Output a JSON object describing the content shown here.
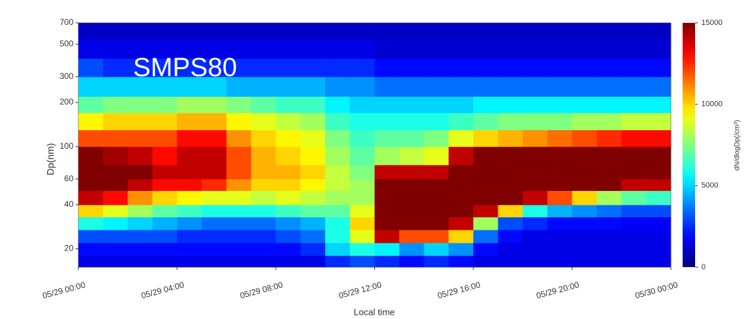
{
  "chart_data": {
    "type": "heatmap",
    "annotation": "SMPS80",
    "xlabel": "Local time",
    "ylabel": "Dp(nm)",
    "colorbar_label": "dN/dlogDp(/cm³)",
    "log_y": true,
    "colormap": "jet",
    "annotation_color": "#ffffff",
    "x_bins": [
      0,
      1,
      2,
      3,
      4,
      5,
      6,
      7,
      8,
      9,
      10,
      11,
      12,
      13,
      14,
      15,
      16,
      17,
      18,
      19,
      20,
      21,
      22,
      23,
      24
    ],
    "xlim": [
      0,
      24
    ],
    "xticks": [
      {
        "value": 0,
        "label": "05/29 00:00"
      },
      {
        "value": 4,
        "label": "05/29 04:00"
      },
      {
        "value": 8,
        "label": "05/29 08:00"
      },
      {
        "value": 12,
        "label": "05/29 12:00"
      },
      {
        "value": 16,
        "label": "05/29 16:00"
      },
      {
        "value": 20,
        "label": "05/29 20:00"
      },
      {
        "value": 24,
        "label": "05/30 00:00"
      }
    ],
    "y_bins": [
      15,
      18,
      22,
      27,
      33,
      40,
      50,
      60,
      75,
      100,
      130,
      170,
      220,
      300,
      400,
      550,
      700
    ],
    "ylim": [
      15,
      700
    ],
    "yticks": [
      20,
      40,
      60,
      100,
      200,
      300,
      500,
      700
    ],
    "clim": [
      0,
      15000
    ],
    "cticks": [
      0,
      5000,
      10000,
      15000
    ],
    "z": [
      [
        1500,
        1500,
        1500,
        1500,
        1500,
        1500,
        1500,
        1500,
        1500,
        1500,
        2500,
        3000,
        2500,
        2000,
        2500,
        2000,
        1500,
        1500,
        1500,
        1500,
        1500,
        1500,
        1500,
        1500
      ],
      [
        2000,
        2000,
        2000,
        2000,
        2000,
        2000,
        2000,
        2000,
        2000,
        2500,
        5000,
        6000,
        5500,
        4000,
        5000,
        4000,
        2000,
        1500,
        1500,
        1500,
        1500,
        1500,
        1500,
        1500
      ],
      [
        3000,
        3000,
        3000,
        3000,
        2500,
        2500,
        2500,
        2500,
        3000,
        3500,
        6000,
        9000,
        14000,
        12000,
        12000,
        10000,
        3500,
        2000,
        1500,
        1500,
        1500,
        1500,
        1500,
        1500
      ],
      [
        6000,
        5500,
        5000,
        4500,
        4000,
        3500,
        3500,
        3500,
        4000,
        4500,
        6000,
        10000,
        15000,
        15000,
        15000,
        14000,
        8000,
        3000,
        2500,
        2000,
        2000,
        2000,
        1800,
        1800
      ],
      [
        10000,
        9000,
        8000,
        7000,
        6500,
        6000,
        6000,
        6000,
        6500,
        7000,
        7000,
        9000,
        15000,
        15000,
        15000,
        15000,
        14000,
        10000,
        6000,
        4500,
        4000,
        3500,
        3000,
        3000
      ],
      [
        14000,
        13000,
        11000,
        10000,
        9500,
        9000,
        9000,
        8500,
        9000,
        8500,
        8000,
        8000,
        15000,
        15000,
        15000,
        15000,
        15000,
        15000,
        14000,
        12000,
        10000,
        8000,
        7000,
        6500
      ],
      [
        15000,
        15000,
        14000,
        13000,
        13000,
        12500,
        11000,
        10000,
        10000,
        9500,
        8500,
        8000,
        15000,
        15000,
        15000,
        15000,
        15000,
        15000,
        15000,
        15000,
        15000,
        15000,
        14000,
        14000
      ],
      [
        15000,
        15000,
        15000,
        14000,
        14000,
        14000,
        12000,
        10500,
        10500,
        10000,
        8500,
        7500,
        14000,
        14000,
        14000,
        15000,
        15000,
        15000,
        15000,
        15000,
        15000,
        15000,
        15000,
        15000
      ],
      [
        15000,
        14500,
        14000,
        13000,
        14000,
        14000,
        12000,
        10500,
        10000,
        9500,
        8000,
        7000,
        8000,
        8500,
        9000,
        14000,
        15000,
        15000,
        15000,
        15000,
        15000,
        15000,
        15000,
        15000
      ],
      [
        12000,
        12000,
        12000,
        12000,
        13000,
        13000,
        11000,
        10000,
        9500,
        9000,
        7500,
        6500,
        7000,
        7000,
        7500,
        9000,
        10000,
        10500,
        11000,
        11500,
        12000,
        12500,
        13000,
        13000
      ],
      [
        9500,
        10000,
        10000,
        10000,
        10500,
        10500,
        9500,
        9000,
        8500,
        8000,
        6500,
        6000,
        6000,
        6000,
        6000,
        6500,
        7000,
        7500,
        7500,
        7500,
        8000,
        8000,
        8500,
        8500
      ],
      [
        7000,
        7500,
        7500,
        7500,
        8000,
        8000,
        7500,
        7000,
        6500,
        6500,
        5500,
        5000,
        5000,
        5000,
        5000,
        5000,
        5500,
        5500,
        5500,
        5500,
        5500,
        5500,
        5500,
        5500
      ],
      [
        5000,
        5000,
        5000,
        5000,
        5000,
        5000,
        4500,
        4500,
        4500,
        4500,
        4000,
        4000,
        3500,
        3500,
        3500,
        3500,
        3500,
        3500,
        3500,
        3500,
        3500,
        3500,
        3500,
        3500
      ],
      [
        3000,
        2500,
        2500,
        2500,
        2500,
        2500,
        2500,
        2500,
        2500,
        2500,
        2500,
        2500,
        2000,
        2000,
        2000,
        2000,
        2000,
        2000,
        2000,
        2000,
        2000,
        2000,
        2000,
        2000
      ],
      [
        1500,
        1500,
        1500,
        1500,
        1500,
        1500,
        1500,
        1500,
        1500,
        1500,
        1500,
        1500,
        1200,
        1200,
        1200,
        1200,
        1200,
        1200,
        1200,
        1200,
        1200,
        1200,
        1200,
        1200
      ],
      [
        1000,
        1000,
        1000,
        1000,
        1000,
        1000,
        1000,
        1000,
        1000,
        1000,
        1000,
        1000,
        1000,
        1000,
        1000,
        1000,
        1000,
        1000,
        1000,
        1000,
        1000,
        1000,
        1000,
        1000
      ]
    ]
  }
}
